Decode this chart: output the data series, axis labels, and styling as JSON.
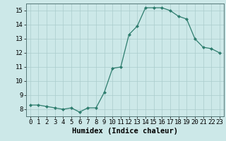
{
  "x": [
    0,
    1,
    2,
    3,
    4,
    5,
    6,
    7,
    8,
    9,
    10,
    11,
    12,
    13,
    14,
    15,
    16,
    17,
    18,
    19,
    20,
    21,
    22,
    23
  ],
  "y": [
    8.3,
    8.3,
    8.2,
    8.1,
    8.0,
    8.1,
    7.8,
    8.1,
    8.1,
    9.2,
    10.9,
    11.0,
    13.3,
    13.9,
    15.2,
    15.2,
    15.2,
    15.0,
    14.6,
    14.4,
    13.0,
    12.4,
    12.3,
    12.0
  ],
  "xlabel": "Humidex (Indice chaleur)",
  "bg_color": "#cce8e8",
  "line_color": "#2e7d6e",
  "grid_color": "#aacccc",
  "ylim": [
    7.5,
    15.5
  ],
  "xlim": [
    -0.5,
    23.5
  ],
  "yticks": [
    8,
    9,
    10,
    11,
    12,
    13,
    14,
    15
  ],
  "xticks": [
    0,
    1,
    2,
    3,
    4,
    5,
    6,
    7,
    8,
    9,
    10,
    11,
    12,
    13,
    14,
    15,
    16,
    17,
    18,
    19,
    20,
    21,
    22,
    23
  ],
  "tick_fontsize": 6.5,
  "xlabel_fontsize": 7.5
}
